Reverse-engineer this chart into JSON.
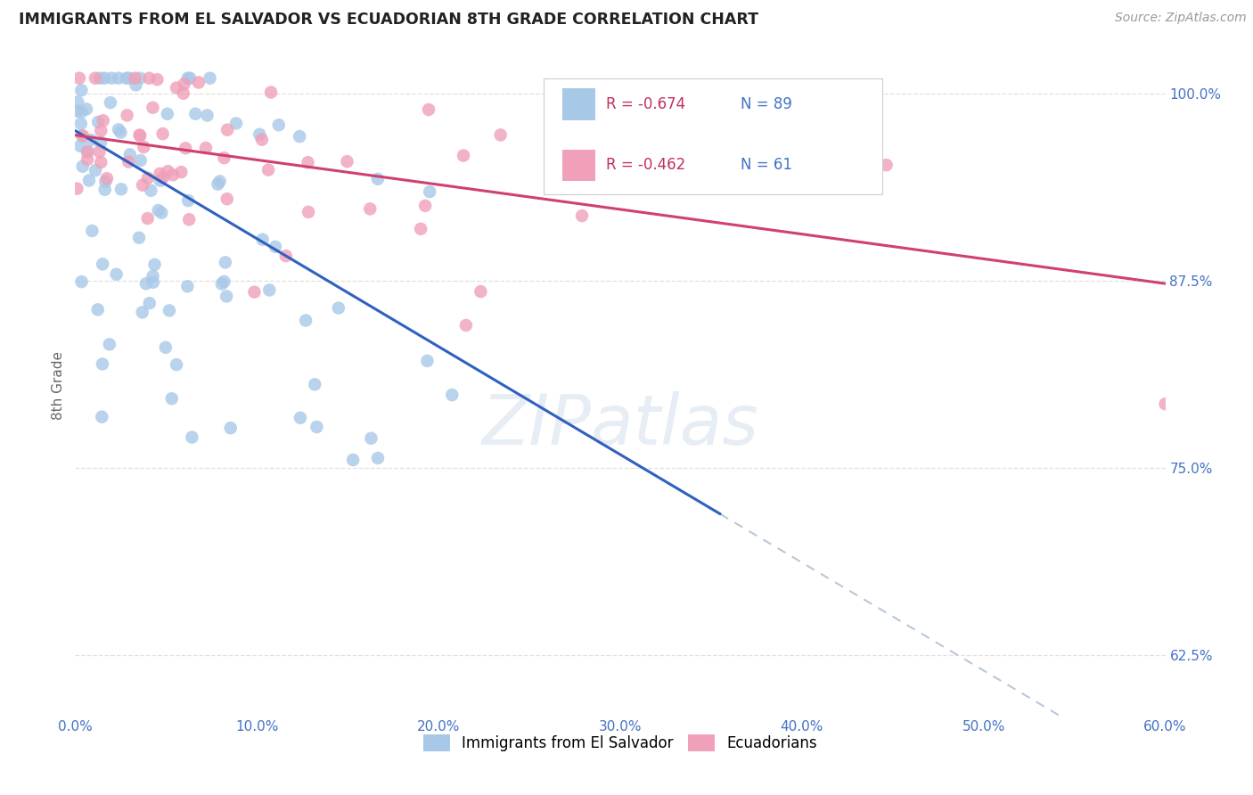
{
  "title": "IMMIGRANTS FROM EL SALVADOR VS ECUADORIAN 8TH GRADE CORRELATION CHART",
  "source": "Source: ZipAtlas.com",
  "ylabel_label": "8th Grade",
  "legend_label1": "Immigrants from El Salvador",
  "legend_label2": "Ecuadorians",
  "legend_R1": "-0.674",
  "legend_N1": "89",
  "legend_R2": "-0.462",
  "legend_N2": "61",
  "color_blue": "#a8c8e8",
  "color_pink": "#f0a0b8",
  "line_color_blue": "#3060c0",
  "line_color_pink": "#d04070",
  "line_color_dashed": "#b8c8d8",
  "background_color": "#ffffff",
  "grid_color": "#e0e0e0",
  "text_color_blue": "#4472c4",
  "text_color_title": "#222222",
  "xmin": 0.0,
  "xmax": 0.6,
  "ymin": 0.585,
  "ymax": 1.025,
  "blue_intercept": 0.975,
  "blue_slope": -0.72,
  "pink_intercept": 0.972,
  "pink_slope": -0.165,
  "blue_solid_xend": 0.355,
  "blue_dashed_xstart": 0.355,
  "blue_dashed_xend": 0.62
}
